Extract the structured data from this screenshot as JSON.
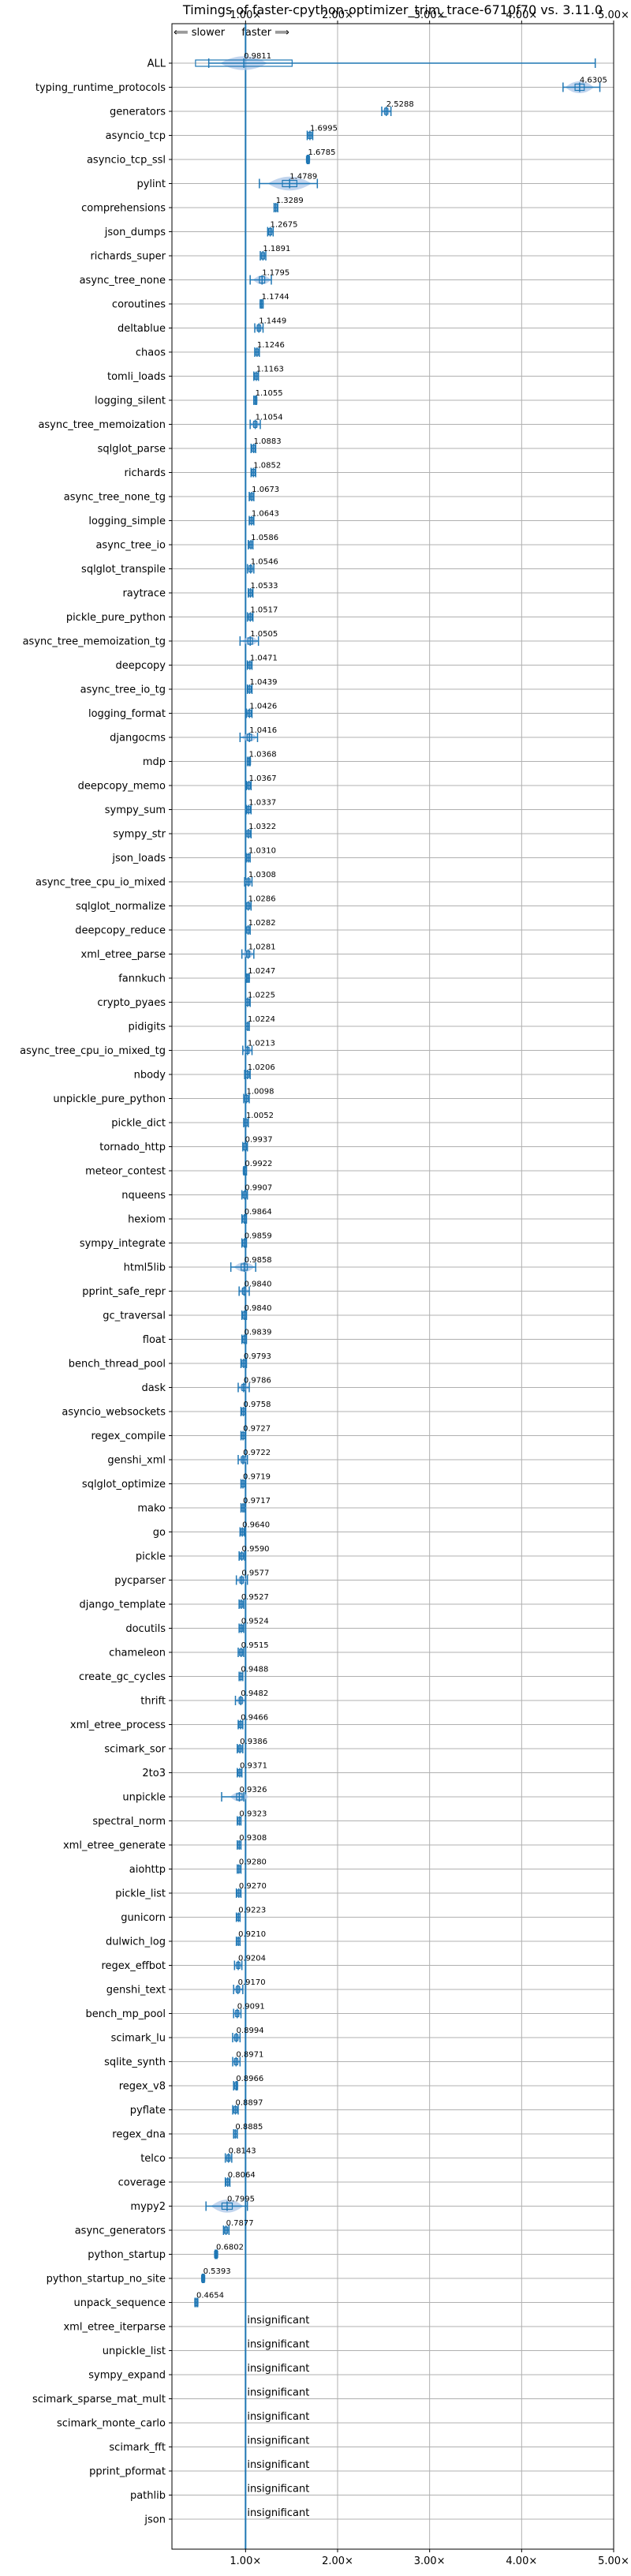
{
  "chart_data": {
    "type": "horizontal-violin-boxplot",
    "title": "Timings of faster-cpython-optimizer_trim_trace-6710f70 vs. 3.11.0",
    "direction_note": "⟸ slower   faster ⟹",
    "xlim": [
      0.2,
      5.0
    ],
    "x_ticks": [
      1,
      2,
      3,
      4,
      5
    ],
    "x_tick_labels": [
      "1.00×",
      "2.00×",
      "3.00×",
      "4.00×",
      "5.00×"
    ],
    "grid": true,
    "reference_line": 1.0,
    "colors": {
      "reference_line": "#1f77b4",
      "box": "#1f77b4",
      "violin": "#aec7e8",
      "grid": "#b0b0b0"
    },
    "insignificant_text": "insignificant",
    "categories": [
      "ALL",
      "typing_runtime_protocols",
      "generators",
      "asyncio_tcp",
      "asyncio_tcp_ssl",
      "pylint",
      "comprehensions",
      "json_dumps",
      "richards_super",
      "async_tree_none",
      "coroutines",
      "deltablue",
      "chaos",
      "tomli_loads",
      "logging_silent",
      "async_tree_memoization",
      "sqlglot_parse",
      "richards",
      "async_tree_none_tg",
      "logging_simple",
      "async_tree_io",
      "sqlglot_transpile",
      "raytrace",
      "pickle_pure_python",
      "async_tree_memoization_tg",
      "deepcopy",
      "async_tree_io_tg",
      "logging_format",
      "djangocms",
      "mdp",
      "deepcopy_memo",
      "sympy_sum",
      "sympy_str",
      "json_loads",
      "async_tree_cpu_io_mixed",
      "sqlglot_normalize",
      "deepcopy_reduce",
      "xml_etree_parse",
      "fannkuch",
      "crypto_pyaes",
      "pidigits",
      "async_tree_cpu_io_mixed_tg",
      "nbody",
      "unpickle_pure_python",
      "pickle_dict",
      "tornado_http",
      "meteor_contest",
      "nqueens",
      "hexiom",
      "sympy_integrate",
      "html5lib",
      "pprint_safe_repr",
      "gc_traversal",
      "float",
      "bench_thread_pool",
      "dask",
      "asyncio_websockets",
      "regex_compile",
      "genshi_xml",
      "sqlglot_optimize",
      "mako",
      "go",
      "pickle",
      "pycparser",
      "django_template",
      "docutils",
      "chameleon",
      "create_gc_cycles",
      "thrift",
      "xml_etree_process",
      "scimark_sor",
      "2to3",
      "unpickle",
      "spectral_norm",
      "xml_etree_generate",
      "aiohttp",
      "pickle_list",
      "gunicorn",
      "dulwich_log",
      "regex_effbot",
      "genshi_text",
      "bench_mp_pool",
      "scimark_lu",
      "sqlite_synth",
      "regex_v8",
      "pyflate",
      "regex_dna",
      "telco",
      "coverage",
      "mypy2",
      "async_generators",
      "python_startup",
      "python_startup_no_site",
      "unpack_sequence",
      "xml_etree_iterparse",
      "unpickle_list",
      "sympy_expand",
      "scimark_sparse_mat_mult",
      "scimark_monte_carlo",
      "scimark_fft",
      "pprint_pformat",
      "pathlib",
      "json"
    ],
    "values": [
      0.9811,
      4.6305,
      2.5288,
      1.6995,
      1.6785,
      1.4789,
      1.3289,
      1.2675,
      1.1891,
      1.1795,
      1.1744,
      1.1449,
      1.1246,
      1.1163,
      1.1055,
      1.1054,
      1.0883,
      1.0852,
      1.0673,
      1.0643,
      1.0586,
      1.0546,
      1.0533,
      1.0517,
      1.0505,
      1.0471,
      1.0439,
      1.0426,
      1.0416,
      1.0368,
      1.0367,
      1.0337,
      1.0322,
      1.031,
      1.0308,
      1.0286,
      1.0282,
      1.0281,
      1.0247,
      1.0225,
      1.0224,
      1.0213,
      1.0206,
      1.0098,
      1.0052,
      0.9937,
      0.9922,
      0.9907,
      0.9864,
      0.9859,
      0.9858,
      0.984,
      0.984,
      0.9839,
      0.9793,
      0.9786,
      0.9758,
      0.9727,
      0.9722,
      0.9719,
      0.9717,
      0.964,
      0.959,
      0.9577,
      0.9527,
      0.9524,
      0.9515,
      0.9488,
      0.9482,
      0.9466,
      0.9386,
      0.9371,
      0.9326,
      0.9323,
      0.9308,
      0.928,
      0.927,
      0.9223,
      0.921,
      0.9204,
      0.917,
      0.9091,
      0.8994,
      0.8971,
      0.8966,
      0.8897,
      0.8885,
      0.8143,
      0.8064,
      0.7995,
      0.7877,
      0.6802,
      0.5393,
      0.4654,
      null,
      null,
      null,
      null,
      null,
      null,
      null,
      null,
      null
    ],
    "value_labels": [
      "0.9811",
      "4.6305",
      "2.5288",
      "1.6995",
      "1.6785",
      "1.4789",
      "1.3289",
      "1.2675",
      "1.1891",
      "1.1795",
      "1.1744",
      "1.1449",
      "1.1246",
      "1.1163",
      "1.1055",
      "1.1054",
      "1.0883",
      "1.0852",
      "1.0673",
      "1.0643",
      "1.0586",
      "1.0546",
      "1.0533",
      "1.0517",
      "1.0505",
      "1.0471",
      "1.0439",
      "1.0426",
      "1.0416",
      "1.0368",
      "1.0367",
      "1.0337",
      "1.0322",
      "1.0310",
      "1.0308",
      "1.0286",
      "1.0282",
      "1.0281",
      "1.0247",
      "1.0225",
      "1.0224",
      "1.0213",
      "1.0206",
      "1.0098",
      "1.0052",
      "0.9937",
      "0.9922",
      "0.9907",
      "0.9864",
      "0.9859",
      "0.9858",
      "0.9840",
      "0.9840",
      "0.9839",
      "0.9793",
      "0.9786",
      "0.9758",
      "0.9727",
      "0.9722",
      "0.9719",
      "0.9717",
      "0.9640",
      "0.9590",
      "0.9577",
      "0.9527",
      "0.9524",
      "0.9515",
      "0.9488",
      "0.9482",
      "0.9466",
      "0.9386",
      "0.9371",
      "0.9326",
      "0.9323",
      "0.9308",
      "0.9280",
      "0.9270",
      "0.9223",
      "0.9210",
      "0.9204",
      "0.9170",
      "0.9091",
      "0.8994",
      "0.8971",
      "0.8966",
      "0.8897",
      "0.8885",
      "0.8143",
      "0.8064",
      "0.7995",
      "0.7877",
      "0.6802",
      "0.5393",
      "0.4654",
      "",
      "",
      "",
      "",
      "",
      "",
      "",
      "",
      ""
    ],
    "whisker_ranges": [
      [
        0.6,
        4.8
      ],
      [
        4.45,
        4.85
      ],
      [
        2.48,
        2.58
      ],
      [
        1.67,
        1.73
      ],
      [
        1.67,
        1.69
      ],
      [
        1.15,
        1.78
      ],
      [
        1.31,
        1.35
      ],
      [
        1.24,
        1.3
      ],
      [
        1.16,
        1.22
      ],
      [
        1.05,
        1.28
      ],
      [
        1.16,
        1.19
      ],
      [
        1.1,
        1.19
      ],
      [
        1.1,
        1.15
      ],
      [
        1.09,
        1.14
      ],
      [
        1.09,
        1.12
      ],
      [
        1.05,
        1.16
      ],
      [
        1.06,
        1.11
      ],
      [
        1.06,
        1.11
      ],
      [
        1.04,
        1.09
      ],
      [
        1.04,
        1.09
      ],
      [
        1.03,
        1.08
      ],
      [
        1.02,
        1.09
      ],
      [
        1.03,
        1.08
      ],
      [
        1.02,
        1.08
      ],
      [
        0.94,
        1.14
      ],
      [
        1.02,
        1.07
      ],
      [
        1.02,
        1.07
      ],
      [
        1.01,
        1.07
      ],
      [
        0.94,
        1.13
      ],
      [
        1.02,
        1.05
      ],
      [
        1.01,
        1.06
      ],
      [
        1.01,
        1.06
      ],
      [
        1.0,
        1.06
      ],
      [
        1.01,
        1.05
      ],
      [
        0.99,
        1.07
      ],
      [
        1.0,
        1.06
      ],
      [
        1.0,
        1.05
      ],
      [
        0.96,
        1.09
      ],
      [
        1.01,
        1.04
      ],
      [
        1.0,
        1.05
      ],
      [
        1.0,
        1.04
      ],
      [
        0.97,
        1.07
      ],
      [
        0.99,
        1.05
      ],
      [
        0.98,
        1.04
      ],
      [
        0.98,
        1.03
      ],
      [
        0.97,
        1.02
      ],
      [
        0.98,
        1.01
      ],
      [
        0.96,
        1.02
      ],
      [
        0.96,
        1.01
      ],
      [
        0.96,
        1.01
      ],
      [
        0.84,
        1.11
      ],
      [
        0.93,
        1.04
      ],
      [
        0.96,
        1.01
      ],
      [
        0.96,
        1.01
      ],
      [
        0.95,
        1.01
      ],
      [
        0.92,
        1.04
      ],
      [
        0.95,
        1.0
      ],
      [
        0.95,
        1.0
      ],
      [
        0.92,
        1.02
      ],
      [
        0.95,
        1.0
      ],
      [
        0.95,
        0.99
      ],
      [
        0.94,
        0.99
      ],
      [
        0.93,
        0.99
      ],
      [
        0.9,
        1.02
      ],
      [
        0.93,
        0.98
      ],
      [
        0.93,
        0.98
      ],
      [
        0.92,
        0.98
      ],
      [
        0.93,
        0.97
      ],
      [
        0.89,
        1.0
      ],
      [
        0.92,
        0.97
      ],
      [
        0.91,
        0.97
      ],
      [
        0.91,
        0.96
      ],
      [
        0.74,
        0.98
      ],
      [
        0.91,
        0.95
      ],
      [
        0.91,
        0.95
      ],
      [
        0.91,
        0.95
      ],
      [
        0.9,
        0.95
      ],
      [
        0.9,
        0.94
      ],
      [
        0.9,
        0.94
      ],
      [
        0.88,
        0.96
      ],
      [
        0.87,
        0.97
      ],
      [
        0.87,
        0.95
      ],
      [
        0.86,
        0.94
      ],
      [
        0.86,
        0.94
      ],
      [
        0.87,
        0.91
      ],
      [
        0.86,
        0.92
      ],
      [
        0.87,
        0.91
      ],
      [
        0.78,
        0.85
      ],
      [
        0.78,
        0.83
      ],
      [
        0.57,
        1.02
      ],
      [
        0.76,
        0.82
      ],
      [
        0.67,
        0.69
      ],
      [
        0.53,
        0.55
      ],
      [
        0.45,
        0.48
      ],
      null,
      null,
      null,
      null,
      null,
      null,
      null,
      null,
      null
    ]
  }
}
